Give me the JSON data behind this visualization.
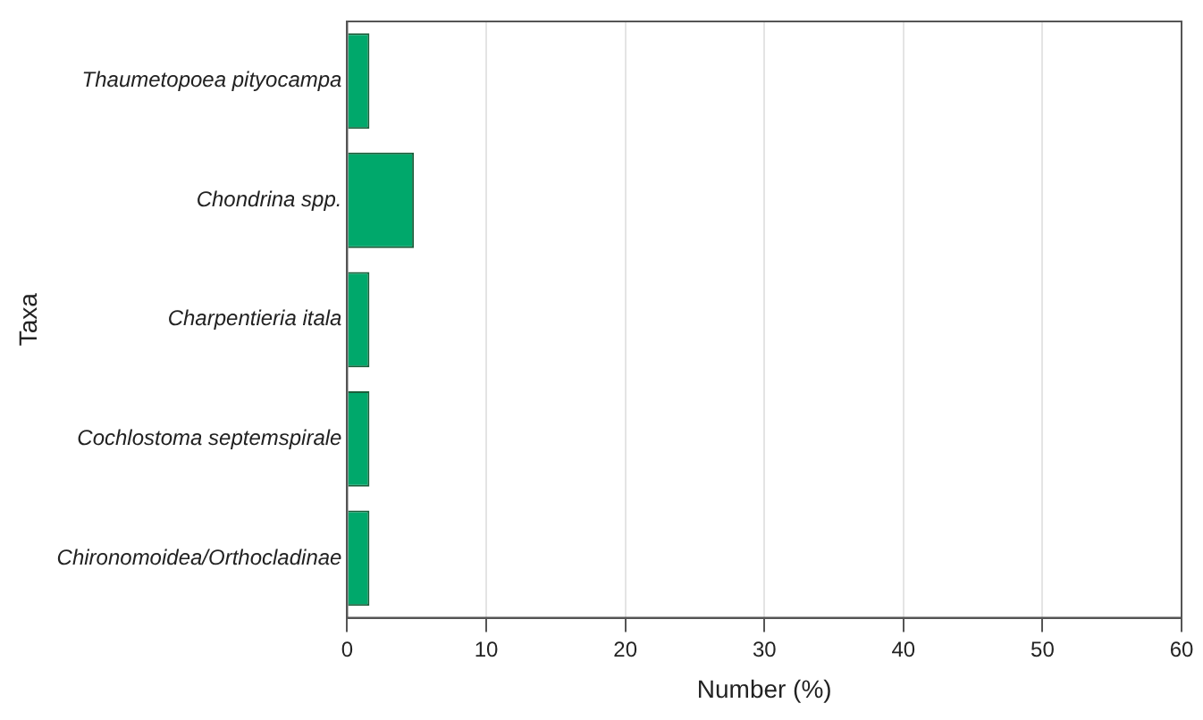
{
  "chart_data": {
    "type": "bar",
    "orientation": "horizontal",
    "xlabel": "Number (%)",
    "ylabel": "Taxa",
    "categories": [
      "Thaumetopoea pityocampa",
      "Chondrina spp.",
      "Charpentieria itala",
      "Cochlostoma septemspirale",
      "Chironomoidea/Orthocladinae"
    ],
    "values": [
      1.6,
      4.8,
      1.6,
      1.6,
      1.6
    ],
    "color": "#00a86b",
    "xlim": [
      0,
      60
    ],
    "xticks": [
      0,
      10,
      20,
      30,
      40,
      50,
      60
    ],
    "grid": "x"
  }
}
